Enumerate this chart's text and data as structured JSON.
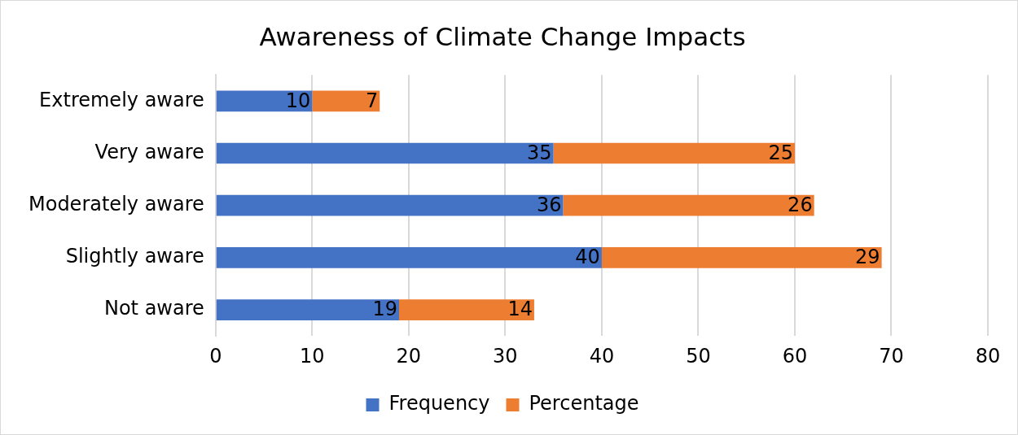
{
  "chart_data": {
    "type": "bar",
    "title": "Awareness of Climate Change Impacts",
    "orientation": "horizontal",
    "stacked": true,
    "categories": [
      "Extremely aware",
      "Very aware",
      "Moderately aware",
      "Slightly aware",
      "Not aware"
    ],
    "series": [
      {
        "name": "Frequency",
        "color": "#4472c4",
        "values": [
          10,
          35,
          36,
          40,
          19
        ]
      },
      {
        "name": "Percentage",
        "color": "#ed7d31",
        "values": [
          7,
          25,
          26,
          29,
          14
        ]
      }
    ],
    "xlim": [
      0,
      80
    ],
    "xticks": [
      0,
      10,
      20,
      30,
      40,
      50,
      60,
      70,
      80
    ],
    "grid": "x",
    "legend": "bottom",
    "data_labels": true
  }
}
